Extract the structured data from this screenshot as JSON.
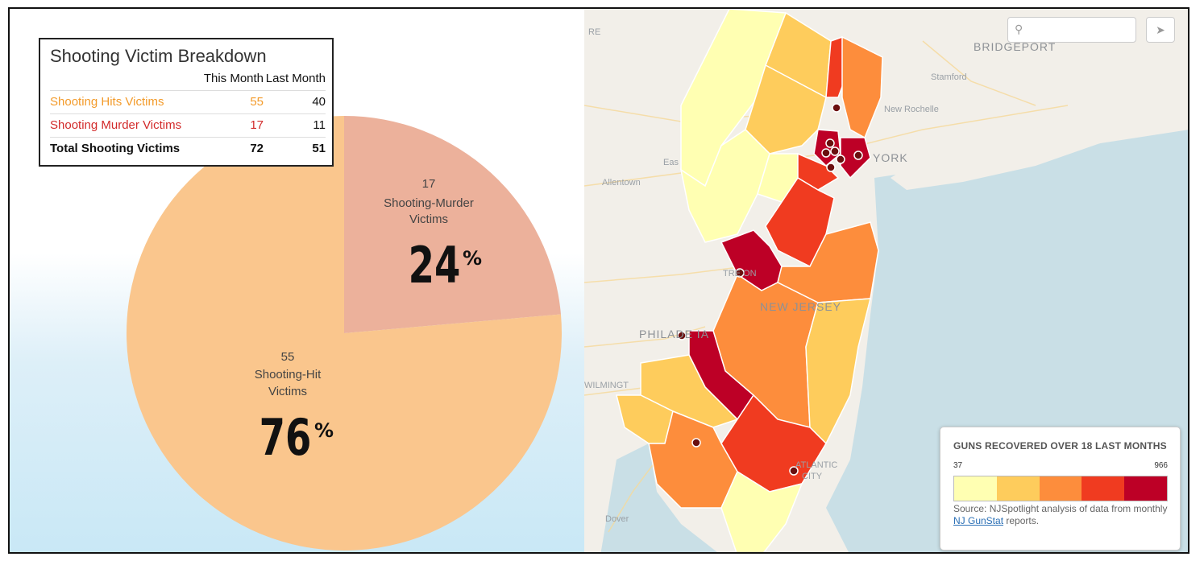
{
  "chart_data": [
    {
      "type": "pie",
      "slices": [
        {
          "label": "Shooting-Murder Victims",
          "count": 17,
          "percent": 24,
          "color": "#ecb19b"
        },
        {
          "label": "Shooting-Hit Victims",
          "count": 55,
          "percent": 76,
          "color": "#fac68d"
        }
      ]
    },
    {
      "type": "table",
      "title": "Shooting Victim Breakdown",
      "columns": [
        "This Month",
        "Last Month"
      ],
      "rows": [
        {
          "label": "Shooting Hits Victims",
          "this_month": 55,
          "last_month": 40
        },
        {
          "label": "Shooting Murder Victims",
          "this_month": 17,
          "last_month": 11
        },
        {
          "label": "Total Shooting Victims",
          "this_month": 72,
          "last_month": 51
        }
      ]
    },
    {
      "type": "heatmap",
      "legend_title": "GUNS RECOVERED OVER 18 LAST MONTHS",
      "scale_min": "37",
      "scale_max": "966",
      "colors": [
        "#ffffb2",
        "#fecc5c",
        "#fd8d3c",
        "#f03b20",
        "#bd0026"
      ]
    }
  ],
  "pie_labels": {
    "murder_count": "17",
    "murder_name_line1": "Shooting-Murder",
    "murder_name_line2": "Victims",
    "murder_pct": "24",
    "hit_count": "55",
    "hit_name_line1": "Shooting-Hit",
    "hit_name_line2": "Victims",
    "hit_pct": "76",
    "pct_sign": "%"
  },
  "table": {
    "title": "Shooting Victim Breakdown",
    "col_this": "This Month",
    "col_last": "Last Month",
    "hits_label": "Shooting Hits Victims",
    "hits_this": "55",
    "hits_last": "40",
    "murder_label": "Shooting Murder Victims",
    "murder_this": "17",
    "murder_last": "11",
    "total_label": "Total Shooting Victims",
    "total_this": "72",
    "total_last": "51"
  },
  "map": {
    "place_labels": {
      "bridgeport": "BRIDGEPORT",
      "stamford": "Stamford",
      "new_rochelle": "New Rochelle",
      "york": "YORK",
      "allentown": "Allentown",
      "trenton": "TRE    ON",
      "new_jersey": "NEW JERSEY",
      "philadelphia": "PHILADE        IA",
      "wilmington": "WILMINGT",
      "atlantic": "ATLANTIC",
      "city": "CITY",
      "dover": "Dover",
      "re": "RE",
      "eas": "Eas"
    },
    "search_icon": "search-icon",
    "locate_icon": "locate-arrow-icon"
  },
  "legend": {
    "title": "GUNS RECOVERED OVER 18 LAST MONTHS",
    "min": "37",
    "max": "966",
    "source_prefix": "Source: NJSpotlight analysis of data from monthly ",
    "source_link": "NJ GunStat",
    "source_suffix": " reports."
  }
}
